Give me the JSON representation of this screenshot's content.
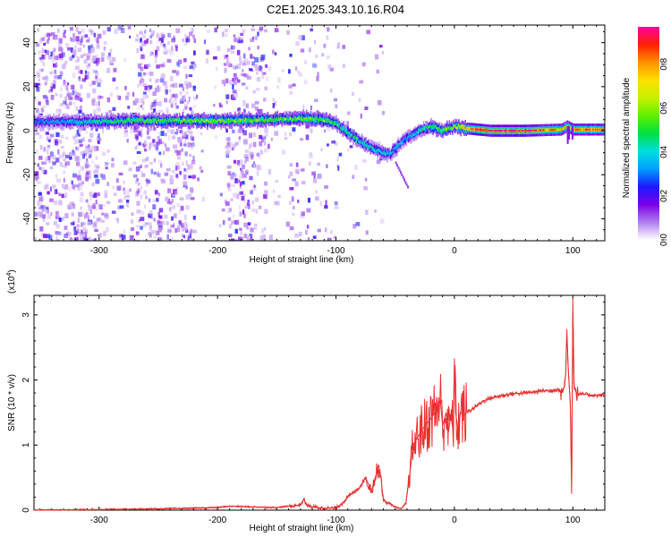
{
  "figure_title": "C2E1.2025.343.10.16.R04",
  "chart_data": [
    {
      "type": "heatmap",
      "title": "C2E1.2025.343.10.16.R04",
      "xlabel": "Height of straight line (km)",
      "ylabel": "Frequency (Hz)",
      "xlim": [
        -355,
        127
      ],
      "ylim": [
        -50,
        48
      ],
      "x_ticks": [
        -300,
        -200,
        -100,
        0,
        100
      ],
      "x_tick_labels": [
        "-300",
        "-200",
        "-100",
        "0",
        "100"
      ],
      "y_ticks": [
        -40,
        -20,
        0,
        20,
        40
      ],
      "y_tick_labels": [
        "-40",
        "-20",
        "0",
        "20",
        "40"
      ],
      "colorbar": {
        "label": "Normalized spectral amplitude",
        "range": [
          0,
          0.97
        ],
        "ticks": [
          0,
          0.2,
          0.4,
          0.6,
          0.8
        ],
        "tick_labels": [
          "0.0",
          "0.2",
          "0.4",
          "0.6",
          "0.8"
        ],
        "colormap": [
          "#ffffff",
          "#b07cf0",
          "#7a00e8",
          "#1a1aff",
          "#00a0ff",
          "#00e0e0",
          "#00e040",
          "#60f000",
          "#c8f000",
          "#ffe000",
          "#ff9000",
          "#ff2000",
          "#ff00a0"
        ]
      },
      "ridge_freq": {
        "height_km": [
          -355,
          -320,
          -280,
          -240,
          -200,
          -160,
          -130,
          -110,
          -100,
          -90,
          -80,
          -70,
          -60,
          -55,
          -50,
          -45,
          -40,
          -35,
          -30,
          -25,
          -20,
          -15,
          -10,
          -5,
          0,
          10,
          30,
          60,
          90,
          95,
          100,
          127
        ],
        "frequency_hz": [
          4,
          4,
          4.5,
          4.5,
          4.5,
          5,
          5.5,
          5,
          3,
          -1,
          -5,
          -8,
          -10,
          -11,
          -8,
          -5,
          -3,
          -2,
          0,
          1,
          2,
          1,
          0,
          1,
          2,
          1,
          0,
          0,
          0.5,
          2,
          0.5,
          0.5
        ]
      },
      "ridge_amplitude": {
        "height_km": [
          -355,
          -300,
          -250,
          -200,
          -150,
          -120,
          -100,
          -80,
          -60,
          -40,
          -20,
          0,
          20,
          60,
          95,
          100,
          127
        ],
        "value": [
          0.3,
          0.45,
          0.55,
          0.6,
          0.55,
          0.6,
          0.5,
          0.45,
          0.4,
          0.35,
          0.5,
          0.6,
          0.95,
          0.95,
          0.7,
          0.85,
          0.85
        ]
      }
    },
    {
      "type": "line",
      "title": "",
      "xlabel": "Height of straight line (km)",
      "ylabel": "SNR (10 * v/v)",
      "y_scale_label": "(x10",
      "y_scale_exponent": "4",
      "y_scale_close": ")",
      "xlim": [
        -355,
        127
      ],
      "ylim": [
        0,
        3.3
      ],
      "x_ticks": [
        -300,
        -200,
        -100,
        0,
        100
      ],
      "x_tick_labels": [
        "-300",
        "-200",
        "-100",
        "0",
        "100"
      ],
      "y_ticks": [
        0,
        1,
        2,
        3
      ],
      "y_tick_labels": [
        "0",
        "1",
        "2",
        "3"
      ],
      "line_color": "#e83030",
      "series": [
        {
          "name": "SNR",
          "x": [
            -355,
            -300,
            -250,
            -220,
            -200,
            -190,
            -170,
            -150,
            -140,
            -130,
            -127,
            -125,
            -120,
            -110,
            -100,
            -95,
            -90,
            -80,
            -75,
            -70,
            -66,
            -64,
            -62,
            -60,
            -55,
            -50,
            -45,
            -41,
            -38,
            -35,
            -30,
            -25,
            -20,
            -15,
            -12,
            -10,
            -7,
            -5,
            -3,
            -1,
            0,
            1,
            3,
            5,
            8,
            10,
            15,
            20,
            25,
            30,
            40,
            50,
            60,
            70,
            75,
            80,
            85,
            88,
            90,
            93,
            94,
            95,
            96,
            97,
            98,
            99,
            100,
            101,
            102,
            103,
            105,
            110,
            120,
            127
          ],
          "y": [
            0.0,
            0.01,
            0.02,
            0.03,
            0.04,
            0.06,
            0.05,
            0.04,
            0.06,
            0.08,
            0.17,
            0.08,
            0.05,
            0.03,
            0.03,
            0.1,
            0.2,
            0.35,
            0.5,
            0.3,
            0.55,
            0.7,
            0.5,
            0.15,
            0.1,
            0.05,
            0.02,
            0.1,
            0.5,
            1.0,
            1.15,
            1.3,
            1.4,
            1.55,
            1.7,
            1.3,
            1.5,
            1.2,
            1.45,
            1.2,
            2.33,
            1.5,
            1.25,
            1.5,
            1.45,
            1.5,
            1.55,
            1.62,
            1.68,
            1.72,
            1.76,
            1.79,
            1.8,
            1.82,
            1.84,
            1.83,
            1.85,
            1.86,
            1.8,
            1.9,
            2.1,
            2.78,
            2.2,
            1.9,
            1.6,
            0.25,
            3.25,
            1.95,
            1.85,
            1.8,
            1.78,
            1.78,
            1.76,
            1.77
          ]
        }
      ]
    }
  ]
}
